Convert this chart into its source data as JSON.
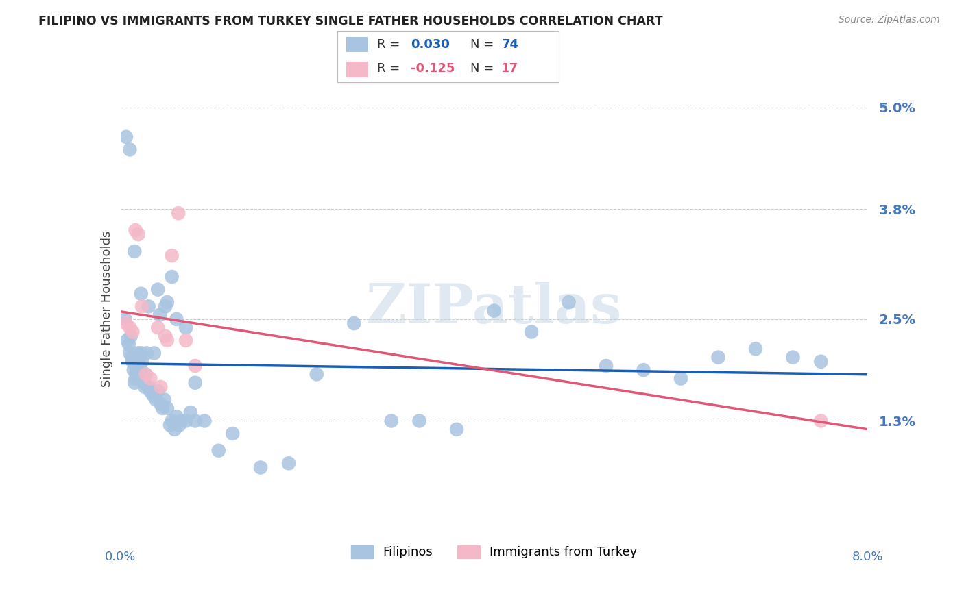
{
  "title": "FILIPINO VS IMMIGRANTS FROM TURKEY SINGLE FATHER HOUSEHOLDS CORRELATION CHART",
  "source": "Source: ZipAtlas.com",
  "ylabel": "Single Father Households",
  "ytick_values": [
    1.3,
    2.5,
    3.8,
    5.0
  ],
  "xlim": [
    0.0,
    8.0
  ],
  "ylim": [
    -0.15,
    5.4
  ],
  "filipinos_x": [
    0.05,
    0.07,
    0.09,
    0.1,
    0.11,
    0.12,
    0.13,
    0.14,
    0.15,
    0.16,
    0.17,
    0.18,
    0.19,
    0.2,
    0.21,
    0.22,
    0.23,
    0.24,
    0.25,
    0.26,
    0.27,
    0.28,
    0.3,
    0.32,
    0.35,
    0.38,
    0.4,
    0.43,
    0.45,
    0.47,
    0.5,
    0.53,
    0.55,
    0.58,
    0.6,
    0.63,
    0.65,
    0.7,
    0.75,
    0.8,
    0.9,
    1.05,
    1.2,
    1.5,
    1.8,
    2.1,
    2.5,
    2.9,
    3.2,
    3.6,
    4.0,
    4.4,
    4.8,
    5.2,
    5.6,
    6.0,
    6.4,
    6.8,
    7.2,
    7.5,
    0.06,
    0.1,
    0.15,
    0.22,
    0.3,
    0.4,
    0.5,
    0.36,
    0.42,
    0.48,
    0.55,
    0.6,
    0.7,
    0.8
  ],
  "filipinos_y": [
    2.5,
    2.25,
    2.2,
    2.1,
    2.3,
    2.05,
    2.0,
    1.9,
    1.75,
    1.8,
    1.85,
    1.9,
    2.1,
    2.05,
    1.95,
    2.1,
    2.0,
    1.85,
    1.75,
    1.7,
    1.85,
    2.1,
    1.7,
    1.65,
    1.6,
    1.55,
    1.65,
    1.5,
    1.45,
    1.55,
    1.45,
    1.25,
    1.3,
    1.2,
    1.35,
    1.25,
    1.3,
    1.3,
    1.4,
    1.3,
    1.3,
    0.95,
    1.15,
    0.75,
    0.8,
    1.85,
    2.45,
    1.3,
    1.3,
    1.2,
    2.6,
    2.35,
    2.7,
    1.95,
    1.9,
    1.8,
    2.05,
    2.15,
    2.05,
    2.0,
    4.65,
    4.5,
    3.3,
    2.8,
    2.65,
    2.85,
    2.7,
    2.1,
    2.55,
    2.65,
    3.0,
    2.5,
    2.4,
    1.75
  ],
  "turkey_x": [
    0.06,
    0.1,
    0.13,
    0.16,
    0.19,
    0.23,
    0.27,
    0.32,
    0.4,
    0.48,
    0.55,
    0.62,
    0.7,
    0.8,
    0.5,
    0.43,
    7.5
  ],
  "turkey_y": [
    2.45,
    2.4,
    2.35,
    3.55,
    3.5,
    2.65,
    1.85,
    1.8,
    2.4,
    2.3,
    3.25,
    3.75,
    2.25,
    1.95,
    2.25,
    1.7,
    1.3
  ],
  "filipinos_color": "#a8c4e0",
  "turkey_color": "#f4b8c8",
  "filipinos_line_color": "#1a5fb4",
  "turkey_line_color": "#e05878",
  "watermark": "ZIPatlas",
  "background_color": "#ffffff",
  "grid_color": "#cccccc",
  "axis_label_color": "#4477bb",
  "title_color": "#222222"
}
